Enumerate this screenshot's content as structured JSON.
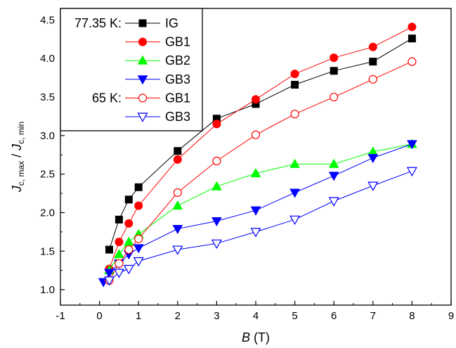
{
  "chart_data": {
    "type": "line",
    "xlabel": {
      "var": "B",
      "unit": " (T)"
    },
    "ylabel": {
      "base1": "J",
      "sub1": "c, max",
      "sep": " / ",
      "base2": "J",
      "sub2": "c, min"
    },
    "xlim": [
      -1,
      9
    ],
    "ylim": [
      0.8,
      4.65
    ],
    "xticks": [
      -1,
      0,
      1,
      2,
      3,
      4,
      5,
      6,
      7,
      8,
      9
    ],
    "yticks": [
      "1.0",
      "1.5",
      "2.0",
      "2.5",
      "3.0",
      "3.5",
      "4.0",
      "4.5"
    ],
    "legend": {
      "placement": "top-left",
      "groups": [
        {
          "label": "77.35 K:",
          "series_indices": [
            0,
            1,
            2,
            3
          ]
        },
        {
          "label": "65 K:",
          "series_indices": [
            4,
            5
          ]
        }
      ]
    },
    "series": [
      {
        "name": "IG",
        "color": "#000000",
        "marker": "square",
        "filled": true,
        "x": [
          0.25,
          0.5,
          0.75,
          1,
          2,
          3,
          4,
          5,
          6,
          7,
          8
        ],
        "y": [
          1.52,
          1.91,
          2.17,
          2.33,
          2.8,
          3.22,
          3.41,
          3.66,
          3.84,
          3.96,
          4.26
        ]
      },
      {
        "name": "GB1",
        "color": "#ff0000",
        "marker": "circle",
        "filled": true,
        "x": [
          0.25,
          0.5,
          0.75,
          1,
          2,
          3,
          4,
          5,
          6,
          7,
          8
        ],
        "y": [
          1.27,
          1.62,
          1.86,
          2.09,
          2.69,
          3.15,
          3.47,
          3.8,
          4.01,
          4.15,
          4.41
        ]
      },
      {
        "name": "GB2",
        "color": "#00ff00",
        "marker": "triangle-up",
        "filled": true,
        "x": [
          0.25,
          0.5,
          0.75,
          1,
          2,
          3,
          4,
          5,
          6,
          7,
          8
        ],
        "y": [
          1.25,
          1.46,
          1.62,
          1.72,
          2.09,
          2.34,
          2.51,
          2.63,
          2.63,
          2.79,
          2.89
        ]
      },
      {
        "name": "GB3",
        "color": "#0000ff",
        "marker": "triangle-down",
        "filled": true,
        "x": [
          0.1,
          0.25,
          0.5,
          0.75,
          1,
          2,
          3,
          4,
          5,
          6,
          7,
          8
        ],
        "y": [
          1.1,
          1.22,
          1.34,
          1.46,
          1.54,
          1.79,
          1.89,
          2.03,
          2.26,
          2.48,
          2.71,
          2.89
        ]
      },
      {
        "name": "GB1",
        "color": "#ff0000",
        "marker": "circle",
        "filled": false,
        "x": [
          0.25,
          0.5,
          0.75,
          1,
          2,
          3,
          4,
          5,
          6,
          7,
          8
        ],
        "y": [
          1.12,
          1.34,
          1.52,
          1.66,
          2.26,
          2.67,
          3.01,
          3.28,
          3.5,
          3.73,
          3.96
        ]
      },
      {
        "name": "GB3",
        "color": "#0000ff",
        "marker": "triangle-down",
        "filled": false,
        "x": [
          0.25,
          0.5,
          0.75,
          1,
          2,
          3,
          4,
          5,
          6,
          7,
          8
        ],
        "y": [
          1.12,
          1.22,
          1.27,
          1.37,
          1.52,
          1.6,
          1.75,
          1.91,
          2.15,
          2.35,
          2.54
        ]
      }
    ]
  }
}
